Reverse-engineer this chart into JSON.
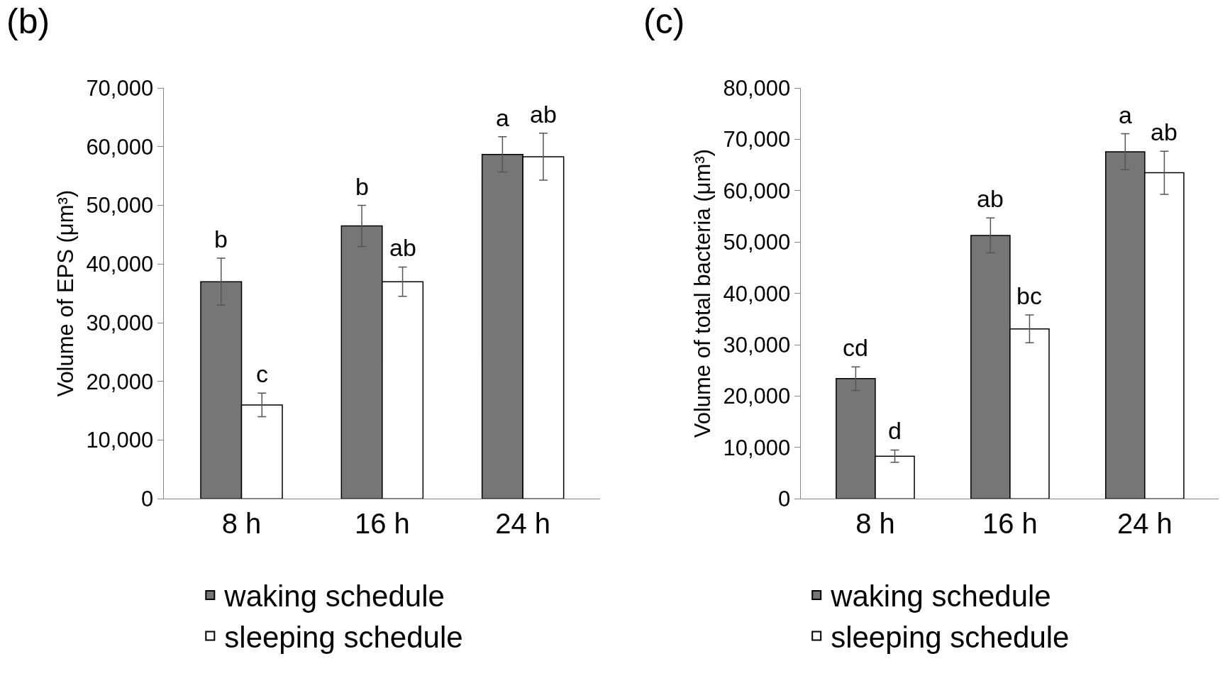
{
  "chart_data": [
    {
      "type": "bar",
      "title": "(b)",
      "categories": [
        "8 h",
        "16 h",
        "24 h"
      ],
      "ylabel": "Volume of EPS (μm³)",
      "ylim": [
        0,
        70000
      ],
      "yticks": [
        {
          "value": 0,
          "label": "0"
        },
        {
          "value": 10000,
          "label": "10,000"
        },
        {
          "value": 20000,
          "label": "20,000"
        },
        {
          "value": 30000,
          "label": "30,000"
        },
        {
          "value": 40000,
          "label": "40,000"
        },
        {
          "value": 50000,
          "label": "50,000"
        },
        {
          "value": 60000,
          "label": "60,000"
        },
        {
          "value": 70000,
          "label": "70,000"
        }
      ],
      "legend": "bottom",
      "series": [
        {
          "name": "waking schedule",
          "color": "#767676",
          "values": [
            37000,
            46500,
            58700
          ],
          "errors": [
            4000,
            3500,
            3000
          ],
          "value_labels": [
            "b",
            "b",
            "a"
          ]
        },
        {
          "name": "sleeping schedule",
          "color": "#ffffff",
          "values": [
            16000,
            37000,
            58300
          ],
          "errors": [
            2000,
            2500,
            4000
          ],
          "value_labels": [
            "c",
            "ab",
            "ab"
          ]
        }
      ]
    },
    {
      "type": "bar",
      "title": "(c)",
      "categories": [
        "8 h",
        "16 h",
        "24 h"
      ],
      "ylabel": "Volume of total bacteria (μm³)",
      "ylim": [
        0,
        80000
      ],
      "yticks": [
        {
          "value": 0,
          "label": "0"
        },
        {
          "value": 10000,
          "label": "10,000"
        },
        {
          "value": 20000,
          "label": "20,000"
        },
        {
          "value": 30000,
          "label": "30,000"
        },
        {
          "value": 40000,
          "label": "40,000"
        },
        {
          "value": 50000,
          "label": "50,000"
        },
        {
          "value": 60000,
          "label": "60,000"
        },
        {
          "value": 70000,
          "label": "70,000"
        },
        {
          "value": 80000,
          "label": "80,000"
        }
      ],
      "legend": "bottom",
      "series": [
        {
          "name": "waking schedule",
          "color": "#767676",
          "values": [
            23400,
            51300,
            67600
          ],
          "errors": [
            2300,
            3400,
            3500
          ],
          "value_labels": [
            "cd",
            "ab",
            "a"
          ]
        },
        {
          "name": "sleeping schedule",
          "color": "#ffffff",
          "values": [
            8300,
            33100,
            63500
          ],
          "errors": [
            1200,
            2700,
            4200
          ],
          "value_labels": [
            "d",
            "bc",
            "ab"
          ]
        }
      ]
    }
  ]
}
